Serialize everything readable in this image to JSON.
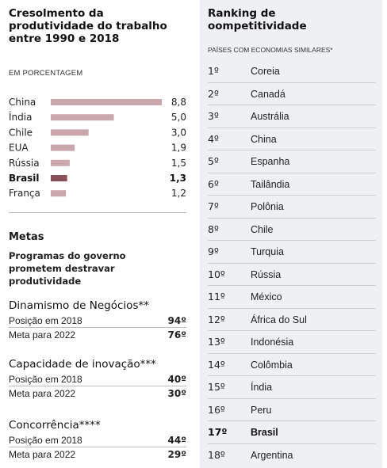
{
  "productivity": {
    "title_lines": [
      "Cresolmento da",
      "produtividade do trabalho",
      "entre 1990 e 2018"
    ],
    "unit": "EM PORCENTAGEM"
  },
  "chart_data": {
    "type": "bar",
    "orientation": "horizontal",
    "title": "Cresolmento da produtividade do trabalho entre 1990 e 2018",
    "unit": "EM PORCENTAGEM",
    "categories": [
      "China",
      "Índia",
      "Chile",
      "EUA",
      "Rússia",
      "Brasil",
      "França"
    ],
    "values": [
      8.8,
      5.0,
      3.0,
      1.9,
      1.5,
      1.3,
      1.2
    ],
    "value_labels": [
      "8,8",
      "5,0",
      "3,0",
      "1,9",
      "1,5",
      "1,3",
      "1,2"
    ],
    "highlight": "Brasil",
    "xlim": [
      0,
      8.8
    ],
    "colors": {
      "bar": "#c9a7ad",
      "highlight": "#8a4f5a"
    },
    "grid": false,
    "legend": "none"
  },
  "metas": {
    "title": "Metas",
    "subtitle_lines": [
      "Programas do governo",
      "prometem destravar",
      "produtividade"
    ],
    "groups": [
      {
        "heading": "Dinamismo de Negócios**",
        "rows": [
          {
            "label": "Posição em 2018",
            "value": "94º"
          },
          {
            "label": "Meta para 2022",
            "value": "76º"
          }
        ]
      },
      {
        "heading": "Capacidade de inovação***",
        "rows": [
          {
            "label": "Posição em 2018",
            "value": "40º"
          },
          {
            "label": "Meta para 2022",
            "value": "30º"
          }
        ]
      },
      {
        "heading": "Concorrência****",
        "rows": [
          {
            "label": "Posição em 2018",
            "value": "44º"
          },
          {
            "label": "Meta para 2022",
            "value": "29º"
          }
        ]
      }
    ]
  },
  "ranking": {
    "title_lines": [
      "Ranking de",
      "oompetitividade"
    ],
    "subtitle": "PAÍSES COM ECONOMIAS SIMILARES*",
    "highlight": "Brasil",
    "rows": [
      {
        "pos": "1º",
        "country": "Coreia"
      },
      {
        "pos": "2º",
        "country": "Canadá"
      },
      {
        "pos": "3º",
        "country": "Austrália"
      },
      {
        "pos": "4º",
        "country": "China"
      },
      {
        "pos": "5º",
        "country": "Espanha"
      },
      {
        "pos": "6º",
        "country": "Tailândia"
      },
      {
        "pos": "7º",
        "country": "Polônia"
      },
      {
        "pos": "8º",
        "country": "Chile"
      },
      {
        "pos": "9º",
        "country": "Turquia"
      },
      {
        "pos": "10º",
        "country": "Rússia"
      },
      {
        "pos": "11º",
        "country": "México"
      },
      {
        "pos": "12º",
        "country": "África do Sul"
      },
      {
        "pos": "13º",
        "country": "Indonésia"
      },
      {
        "pos": "14º",
        "country": "Colômbia"
      },
      {
        "pos": "15º",
        "country": "Índia"
      },
      {
        "pos": "16º",
        "country": "Peru"
      },
      {
        "pos": "17º",
        "country": "Brasil"
      },
      {
        "pos": "18º",
        "country": "Argentina"
      }
    ]
  }
}
